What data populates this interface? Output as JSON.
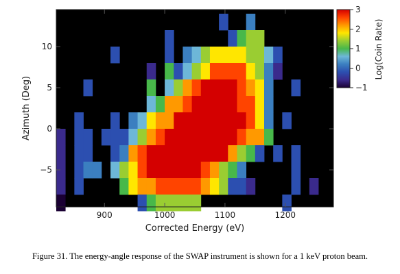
{
  "caption": "Figure 31. The energy-angle response of the SWAP instrument is shown for a 1 keV proton beam.",
  "chart_data": {
    "type": "heatmap",
    "xlabel": "Corrected Energy (eV)",
    "ylabel": "Azimuth (Deg)",
    "colorbar_label": "Log(Coin Rate)",
    "xlim": [
      820,
      1280
    ],
    "ylim": [
      -9.5,
      14.5
    ],
    "xticks": [
      900,
      1000,
      1100,
      1200
    ],
    "yticks": [
      -5,
      0,
      5,
      10
    ],
    "clim": [
      -1,
      3
    ],
    "colorbar_ticks": [
      3,
      2,
      1,
      0,
      -1
    ],
    "colorbar_tick_labels": [
      "3",
      "2",
      "1",
      "0",
      "−1"
    ],
    "background": "#000000",
    "colormap": [
      "#1a0033",
      "#3a2a8c",
      "#2c4fb0",
      "#3b7fc0",
      "#6db7d8",
      "#48b84a",
      "#9acd32",
      "#ffe600",
      "#ff9900",
      "#ff4400",
      "#d40000"
    ],
    "y_centers": [
      13,
      11,
      9,
      7,
      5,
      3,
      1,
      -1,
      -3,
      -5,
      -7,
      -9
    ],
    "x_start": 820,
    "x_step": 15,
    "z": [
      [
        null,
        null,
        null,
        null,
        null,
        null,
        null,
        null,
        null,
        null,
        null,
        null,
        null,
        null,
        null,
        null,
        null,
        null,
        -0.3,
        null,
        null,
        0.0,
        null,
        null,
        null,
        null,
        null,
        null,
        null,
        null
      ],
      [
        null,
        null,
        null,
        null,
        null,
        null,
        null,
        null,
        null,
        null,
        null,
        null,
        -0.3,
        null,
        null,
        null,
        null,
        null,
        null,
        -0.2,
        0.8,
        1.2,
        1.3,
        null,
        null,
        null,
        null,
        null,
        null,
        null
      ],
      [
        null,
        null,
        null,
        null,
        null,
        null,
        -0.3,
        null,
        null,
        null,
        null,
        null,
        -0.4,
        null,
        0.3,
        0.6,
        1.2,
        1.7,
        1.8,
        1.8,
        1.6,
        1.4,
        1.3,
        0.5,
        -0.2,
        null,
        null,
        null,
        null,
        null
      ],
      [
        null,
        null,
        null,
        null,
        null,
        null,
        null,
        null,
        null,
        null,
        -0.5,
        null,
        0.9,
        -0.2,
        0.6,
        1.3,
        1.6,
        2.4,
        2.5,
        2.6,
        2.4,
        1.6,
        1.3,
        0.3,
        -0.5,
        null,
        null,
        null,
        null,
        null
      ],
      [
        null,
        null,
        null,
        -0.4,
        null,
        null,
        null,
        null,
        null,
        null,
        0.8,
        null,
        0.7,
        1.2,
        2.1,
        2.6,
        2.8,
        2.9,
        2.9,
        2.8,
        2.6,
        2.3,
        1.8,
        0.3,
        null,
        null,
        -0.3,
        null,
        null,
        null
      ],
      [
        null,
        null,
        null,
        null,
        null,
        null,
        null,
        null,
        null,
        null,
        0.7,
        0.8,
        2.1,
        2.3,
        2.6,
        2.8,
        2.9,
        2.9,
        2.9,
        2.8,
        2.7,
        2.4,
        1.6,
        0.2,
        null,
        null,
        null,
        null,
        null,
        null
      ],
      [
        null,
        null,
        -0.3,
        null,
        null,
        null,
        -0.4,
        null,
        0.3,
        0.4,
        1.7,
        2.1,
        2.3,
        2.9,
        2.9,
        2.9,
        2.9,
        2.9,
        2.9,
        2.9,
        2.8,
        2.4,
        1.8,
        0.1,
        null,
        -0.3,
        null,
        null,
        null,
        null
      ],
      [
        -0.5,
        null,
        -0.1,
        -0.2,
        null,
        -0.2,
        -0.3,
        -0.2,
        0.4,
        1.2,
        2.2,
        2.5,
        2.9,
        2.9,
        2.9,
        2.9,
        2.9,
        2.9,
        2.9,
        2.9,
        2.4,
        2.3,
        2.3,
        1.0,
        null,
        null,
        null,
        null,
        null,
        null
      ],
      [
        -0.6,
        null,
        -0.3,
        -0.1,
        null,
        null,
        -0.3,
        0.1,
        2.0,
        2.6,
        2.9,
        2.9,
        2.9,
        2.9,
        2.9,
        2.9,
        2.9,
        2.9,
        2.9,
        2.1,
        1.5,
        1.1,
        -0.3,
        null,
        -0.3,
        null,
        -0.3,
        null,
        null,
        null
      ],
      [
        -0.6,
        null,
        -0.3,
        0.2,
        0.3,
        null,
        0.5,
        1.2,
        1.9,
        2.6,
        2.8,
        2.9,
        2.9,
        2.9,
        2.9,
        2.8,
        2.6,
        2.3,
        1.5,
        0.9,
        0.1,
        null,
        null,
        null,
        null,
        null,
        -0.4,
        null,
        null,
        null
      ],
      [
        -0.6,
        null,
        -0.4,
        null,
        null,
        null,
        null,
        0.9,
        1.6,
        2.0,
        2.3,
        2.4,
        2.6,
        2.6,
        2.5,
        2.4,
        2.3,
        1.7,
        1.3,
        -0.3,
        -0.4,
        -0.5,
        null,
        null,
        null,
        null,
        -0.3,
        null,
        -0.6,
        null
      ],
      [
        -1.0,
        null,
        null,
        null,
        null,
        null,
        null,
        null,
        null,
        -0.3,
        1.1,
        1.2,
        1.3,
        1.3,
        1.3,
        1.2,
        null,
        null,
        null,
        null,
        null,
        null,
        null,
        null,
        null,
        -0.4,
        null,
        null,
        null,
        null
      ]
    ]
  }
}
